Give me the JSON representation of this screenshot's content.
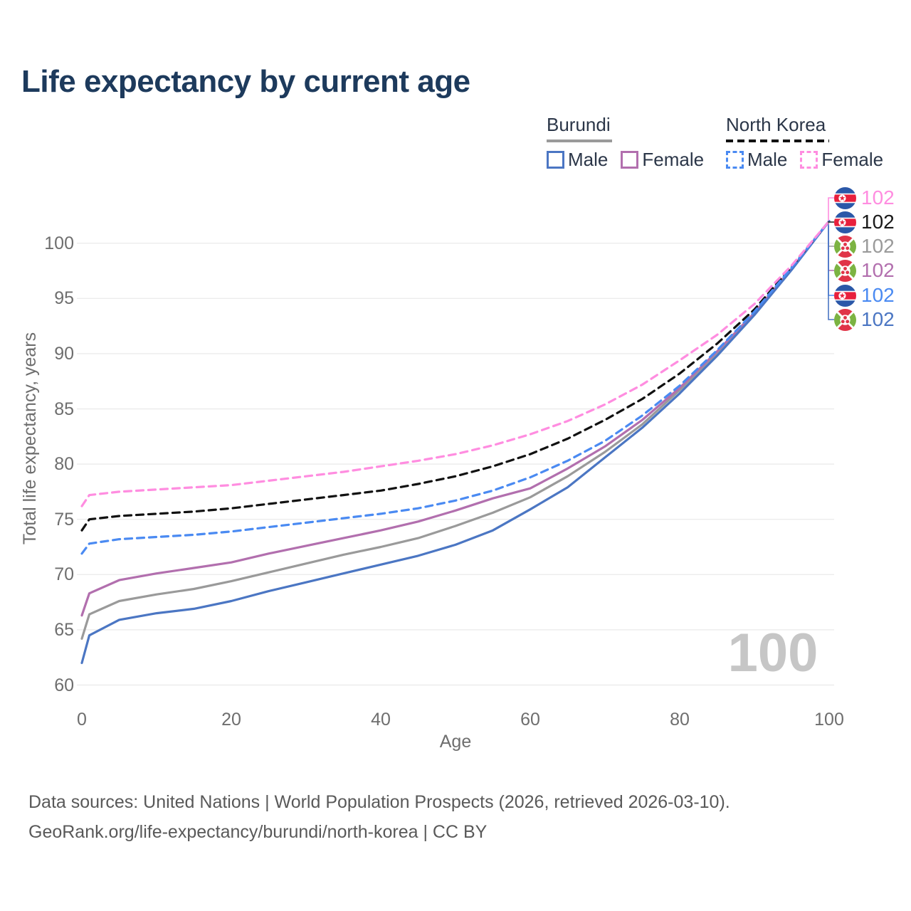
{
  "title": "Life expectancy by current age",
  "legend": {
    "groups": [
      {
        "name": "Burundi",
        "line_style": "solid",
        "underline_color": "#9a9a9a",
        "items": [
          {
            "label": "Male",
            "color": "#4b76c3",
            "dashed": false
          },
          {
            "label": "Female",
            "color": "#b26fae",
            "dashed": false
          }
        ]
      },
      {
        "name": "North Korea",
        "line_style": "dashed",
        "underline_color": "#111111",
        "items": [
          {
            "label": "Male",
            "color": "#4a8af2",
            "dashed": true
          },
          {
            "label": "Female",
            "color": "#ff8de0",
            "dashed": true
          }
        ]
      }
    ]
  },
  "axes": {
    "x": {
      "label": "Age",
      "ticks": [
        0,
        20,
        40,
        60,
        80,
        100
      ],
      "range": [
        0,
        100
      ]
    },
    "y": {
      "label": "Total life expectancy, years",
      "ticks": [
        60,
        65,
        70,
        75,
        80,
        85,
        90,
        95,
        100
      ],
      "range": [
        59,
        103
      ]
    }
  },
  "watermark": "100",
  "chart_data": {
    "type": "line",
    "title": "Life expectancy by current age",
    "xlabel": "Age",
    "ylabel": "Total life expectancy, years",
    "xlim": [
      0,
      100
    ],
    "ylim": [
      59,
      103
    ],
    "grid": "horizontal",
    "legend_position": "top-right",
    "x": [
      0,
      1,
      5,
      10,
      15,
      20,
      25,
      30,
      35,
      40,
      45,
      50,
      55,
      60,
      65,
      70,
      75,
      80,
      85,
      90,
      95,
      100
    ],
    "series": [
      {
        "name": "Burundi Both sexes",
        "country": "Burundi",
        "sex": "Both",
        "color": "#9a9a9a",
        "dashed": false,
        "end_label": "102",
        "values": [
          64.2,
          66.4,
          67.6,
          68.2,
          68.7,
          69.4,
          70.2,
          71.0,
          71.8,
          72.5,
          73.3,
          74.4,
          75.6,
          77.0,
          78.9,
          81.1,
          83.6,
          86.7,
          90.0,
          93.6,
          97.7,
          102
        ]
      },
      {
        "name": "Burundi Female",
        "country": "Burundi",
        "sex": "Female",
        "color": "#b26fae",
        "dashed": false,
        "end_label": "102",
        "values": [
          66.3,
          68.3,
          69.5,
          70.1,
          70.6,
          71.1,
          71.9,
          72.6,
          73.3,
          74.0,
          74.8,
          75.8,
          76.9,
          77.8,
          79.6,
          81.6,
          84.0,
          86.9,
          90.2,
          93.7,
          97.7,
          102
        ]
      },
      {
        "name": "Burundi Male",
        "country": "Burundi",
        "sex": "Male",
        "color": "#4b76c3",
        "dashed": false,
        "end_label": "102",
        "values": [
          62.0,
          64.5,
          65.9,
          66.5,
          66.9,
          67.6,
          68.5,
          69.3,
          70.1,
          70.9,
          71.7,
          72.7,
          74.0,
          75.9,
          77.9,
          80.6,
          83.3,
          86.4,
          89.8,
          93.5,
          97.6,
          102
        ]
      },
      {
        "name": "North Korea Both sexes",
        "country": "North Korea",
        "sex": "Both",
        "color": "#111111",
        "dashed": true,
        "end_label": "102",
        "values": [
          74.0,
          75.0,
          75.3,
          75.5,
          75.7,
          76.0,
          76.4,
          76.8,
          77.2,
          77.6,
          78.2,
          78.9,
          79.8,
          80.9,
          82.3,
          84.0,
          85.9,
          88.2,
          90.9,
          94.0,
          97.9,
          102
        ]
      },
      {
        "name": "North Korea Male",
        "country": "North Korea",
        "sex": "Male",
        "color": "#4a8af2",
        "dashed": true,
        "end_label": "102",
        "values": [
          71.9,
          72.8,
          73.2,
          73.4,
          73.6,
          73.9,
          74.3,
          74.7,
          75.1,
          75.5,
          76.0,
          76.7,
          77.6,
          78.8,
          80.3,
          82.1,
          84.4,
          87.1,
          90.3,
          93.8,
          97.8,
          102
        ]
      },
      {
        "name": "North Korea Female",
        "country": "North Korea",
        "sex": "Female",
        "color": "#ff8de0",
        "dashed": true,
        "end_label": "102",
        "values": [
          76.2,
          77.2,
          77.5,
          77.7,
          77.9,
          78.1,
          78.5,
          78.9,
          79.3,
          79.8,
          80.3,
          80.9,
          81.7,
          82.7,
          83.9,
          85.4,
          87.2,
          89.4,
          91.7,
          94.5,
          98.0,
          102
        ]
      }
    ]
  },
  "right_labels": [
    {
      "flag": "north-korea",
      "series": "North Korea Female",
      "value": "102",
      "color": "#ff8de0"
    },
    {
      "flag": "north-korea",
      "series": "North Korea Both sexes",
      "value": "102",
      "color": "#1a1a1a"
    },
    {
      "flag": "burundi",
      "series": "Burundi Both sexes",
      "value": "102",
      "color": "#9a9a9a"
    },
    {
      "flag": "burundi",
      "series": "Burundi Female",
      "value": "102",
      "color": "#b26fae"
    },
    {
      "flag": "north-korea",
      "series": "North Korea Male",
      "value": "102",
      "color": "#4a8af2"
    },
    {
      "flag": "burundi",
      "series": "Burundi Male",
      "value": "102",
      "color": "#4b76c3"
    }
  ],
  "footer": {
    "line1": "Data sources: United Nations | World Population Prospects (2026, retrieved 2026-03-10).",
    "line2": "GeoRank.org/life-expectancy/burundi/north-korea | CC BY"
  }
}
